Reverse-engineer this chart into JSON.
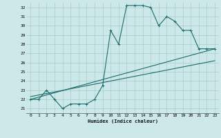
{
  "xlabel": "Humidex (Indice chaleur)",
  "bg_color": "#cce8e8",
  "grid_color": "#aacccc",
  "line_color": "#1a6b6b",
  "xlim": [
    -0.5,
    23.5
  ],
  "ylim": [
    20.5,
    32.5
  ],
  "yticks": [
    21,
    22,
    23,
    24,
    25,
    26,
    27,
    28,
    29,
    30,
    31,
    32
  ],
  "xticks": [
    0,
    1,
    2,
    3,
    4,
    5,
    6,
    7,
    8,
    9,
    10,
    11,
    12,
    13,
    14,
    15,
    16,
    17,
    18,
    19,
    20,
    21,
    22,
    23
  ],
  "line1_x": [
    0,
    1,
    2,
    3,
    4,
    5,
    6,
    7,
    8,
    9,
    10,
    11,
    12,
    13,
    14,
    15,
    16,
    17,
    18,
    19,
    20,
    21,
    22,
    23
  ],
  "line1_y": [
    22.0,
    22.0,
    23.0,
    22.0,
    21.0,
    21.5,
    21.5,
    21.5,
    22.0,
    23.5,
    29.5,
    28.0,
    32.2,
    32.2,
    32.2,
    32.0,
    30.0,
    31.0,
    30.5,
    29.5,
    29.5,
    27.5,
    27.5,
    27.5
  ],
  "line2_x": [
    0,
    23
  ],
  "line2_y": [
    22.0,
    27.5
  ],
  "line3_x": [
    0,
    23
  ],
  "line3_y": [
    22.3,
    26.2
  ]
}
